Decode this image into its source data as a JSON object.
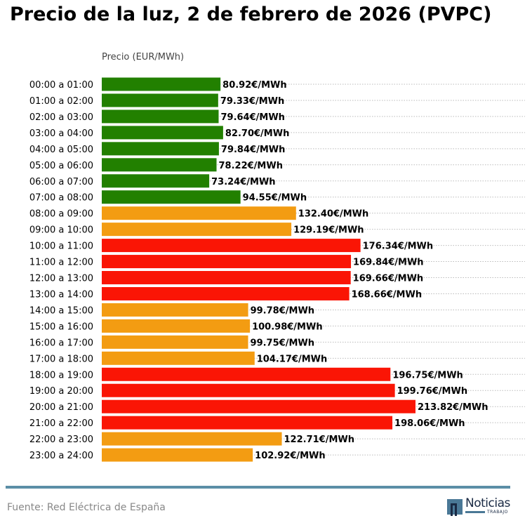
{
  "title": "Precio de la luz, 2 de febrero de 2026 (PVPC)",
  "source": "Fuente: Red Eléctrica de España",
  "logo": {
    "word": "Noticias",
    "sub": "TRABAJO"
  },
  "colors": {
    "low": "#228000",
    "mid": "#f39c12",
    "high": "#fa1505"
  },
  "chart_data": {
    "type": "bar",
    "orientation": "horizontal",
    "xlabel": "Precio (EUR/MWh)",
    "grid": "dotted horizontal",
    "unit_suffix": "€/MWh",
    "categories": [
      "00:00 a 01:00",
      "01:00 a 02:00",
      "02:00 a 03:00",
      "03:00 a 04:00",
      "04:00 a 05:00",
      "05:00 a 06:00",
      "06:00 a 07:00",
      "07:00 a 08:00",
      "08:00 a 09:00",
      "09:00 a 10:00",
      "10:00 a 11:00",
      "11:00 a 12:00",
      "12:00 a 13:00",
      "13:00 a 14:00",
      "14:00 a 15:00",
      "15:00 a 16:00",
      "16:00 a 17:00",
      "17:00 a 18:00",
      "18:00 a 19:00",
      "19:00 a 20:00",
      "20:00 a 21:00",
      "21:00 a 22:00",
      "22:00 a 23:00",
      "23:00 a 24:00"
    ],
    "values": [
      80.92,
      79.33,
      79.64,
      82.7,
      79.84,
      78.22,
      73.24,
      94.55,
      132.4,
      129.19,
      176.34,
      169.84,
      169.66,
      168.66,
      99.78,
      100.98,
      99.75,
      104.17,
      196.75,
      199.76,
      213.82,
      198.06,
      122.71,
      102.92
    ],
    "levels": [
      "low",
      "low",
      "low",
      "low",
      "low",
      "low",
      "low",
      "low",
      "mid",
      "mid",
      "high",
      "high",
      "high",
      "high",
      "mid",
      "mid",
      "mid",
      "mid",
      "high",
      "high",
      "high",
      "high",
      "mid",
      "mid"
    ],
    "labels": [
      "80.92€/MWh",
      "79.33€/MWh",
      "79.64€/MWh",
      "82.70€/MWh",
      "79.84€/MWh",
      "78.22€/MWh",
      "73.24€/MWh",
      "94.55€/MWh",
      "132.40€/MWh",
      "129.19€/MWh",
      "176.34€/MWh",
      "169.84€/MWh",
      "169.66€/MWh",
      "168.66€/MWh",
      "99.78€/MWh",
      "100.98€/MWh",
      "99.75€/MWh",
      "104.17€/MWh",
      "196.75€/MWh",
      "199.76€/MWh",
      "213.82€/MWh",
      "198.06€/MWh",
      "122.71€/MWh",
      "102.92€/MWh"
    ]
  }
}
